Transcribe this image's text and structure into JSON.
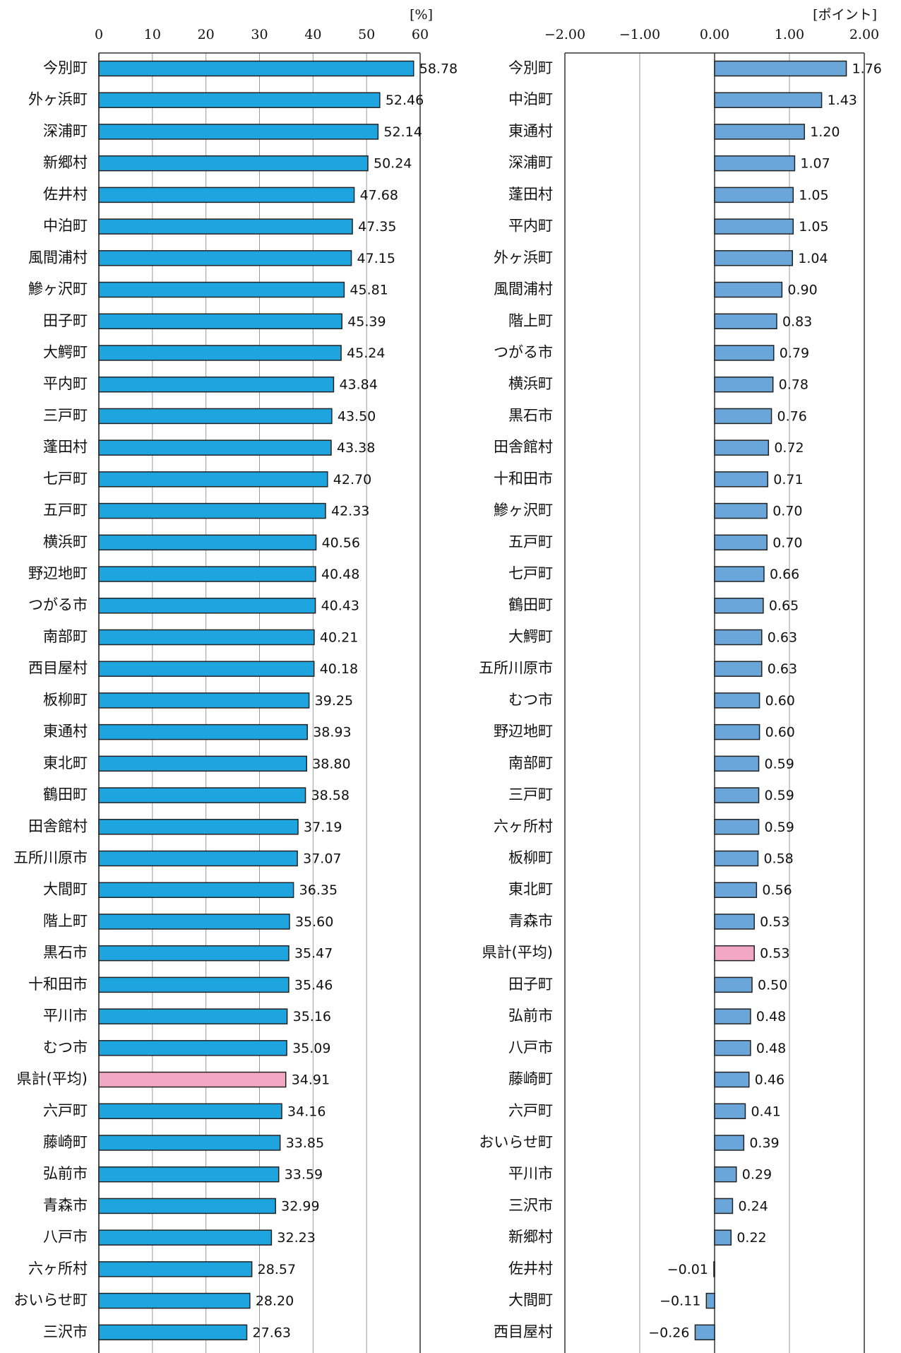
{
  "chart_data": [
    {
      "type": "barh",
      "unit": "[%]",
      "categories": [
        "今別町",
        "外ヶ浜町",
        "深浦町",
        "新郷村",
        "佐井村",
        "中泊町",
        "風間浦村",
        "鰺ヶ沢町",
        "田子町",
        "大鰐町",
        "平内町",
        "三戸町",
        "蓬田村",
        "七戸町",
        "五戸町",
        "横浜町",
        "野辺地町",
        "つがる市",
        "南部町",
        "西目屋村",
        "板柳町",
        "東通村",
        "東北町",
        "鶴田町",
        "田舎館村",
        "五所川原市",
        "大間町",
        "階上町",
        "黒石市",
        "十和田市",
        "平川市",
        "むつ市",
        "県計(平均)",
        "六戸町",
        "藤崎町",
        "弘前市",
        "青森市",
        "八戸市",
        "六ヶ所村",
        "おいらせ町",
        "三沢市"
      ],
      "values": [
        58.78,
        52.46,
        52.14,
        50.24,
        47.68,
        47.35,
        47.15,
        45.81,
        45.39,
        45.24,
        43.84,
        43.5,
        43.38,
        42.7,
        42.33,
        40.56,
        40.48,
        40.43,
        40.21,
        40.18,
        39.25,
        38.93,
        38.8,
        38.58,
        37.19,
        37.07,
        36.35,
        35.6,
        35.47,
        35.46,
        35.16,
        35.09,
        34.91,
        34.16,
        33.85,
        33.59,
        32.99,
        32.23,
        28.57,
        28.2,
        27.63
      ],
      "value_labels": [
        "58.78",
        "52.46",
        "52.14",
        "50.24",
        "47.68",
        "47.35",
        "47.15",
        "45.81",
        "45.39",
        "45.24",
        "43.84",
        "43.50",
        "43.38",
        "42.70",
        "42.33",
        "40.56",
        "40.48",
        "40.43",
        "40.21",
        "40.18",
        "39.25",
        "38.93",
        "38.80",
        "38.58",
        "37.19",
        "37.07",
        "36.35",
        "35.60",
        "35.47",
        "35.46",
        "35.16",
        "35.09",
        "34.91",
        "34.16",
        "33.85",
        "33.59",
        "32.99",
        "32.23",
        "28.57",
        "28.20",
        "27.63"
      ],
      "colors": [
        "#1ea5e0",
        "#1ea5e0",
        "#1ea5e0",
        "#1ea5e0",
        "#1ea5e0",
        "#1ea5e0",
        "#1ea5e0",
        "#1ea5e0",
        "#1ea5e0",
        "#1ea5e0",
        "#1ea5e0",
        "#1ea5e0",
        "#1ea5e0",
        "#1ea5e0",
        "#1ea5e0",
        "#1ea5e0",
        "#1ea5e0",
        "#1ea5e0",
        "#1ea5e0",
        "#1ea5e0",
        "#1ea5e0",
        "#1ea5e0",
        "#1ea5e0",
        "#1ea5e0",
        "#1ea5e0",
        "#1ea5e0",
        "#1ea5e0",
        "#1ea5e0",
        "#1ea5e0",
        "#1ea5e0",
        "#1ea5e0",
        "#1ea5e0",
        "#f2a7c3",
        "#1ea5e0",
        "#1ea5e0",
        "#1ea5e0",
        "#1ea5e0",
        "#1ea5e0",
        "#1ea5e0",
        "#1ea5e0",
        "#1ea5e0"
      ],
      "xlim": [
        0,
        60
      ],
      "xticks": [
        0,
        10,
        20,
        30,
        40,
        50,
        60
      ],
      "grid": true
    },
    {
      "type": "barh",
      "unit": "[ポイント]",
      "categories": [
        "今別町",
        "中泊町",
        "東通村",
        "深浦町",
        "蓬田村",
        "平内町",
        "外ヶ浜町",
        "風間浦村",
        "階上町",
        "つがる市",
        "横浜町",
        "黒石市",
        "田舎館村",
        "十和田市",
        "鰺ヶ沢町",
        "五戸町",
        "七戸町",
        "鶴田町",
        "大鰐町",
        "五所川原市",
        "むつ市",
        "野辺地町",
        "南部町",
        "三戸町",
        "六ヶ所村",
        "板柳町",
        "東北町",
        "青森市",
        "県計(平均)",
        "田子町",
        "弘前市",
        "八戸市",
        "藤崎町",
        "六戸町",
        "おいらせ町",
        "平川市",
        "三沢市",
        "新郷村",
        "佐井村",
        "大間町",
        "西目屋村"
      ],
      "values": [
        1.76,
        1.43,
        1.2,
        1.07,
        1.05,
        1.05,
        1.04,
        0.9,
        0.83,
        0.79,
        0.78,
        0.76,
        0.72,
        0.71,
        0.7,
        0.7,
        0.66,
        0.65,
        0.63,
        0.63,
        0.6,
        0.6,
        0.59,
        0.59,
        0.59,
        0.58,
        0.56,
        0.53,
        0.53,
        0.5,
        0.48,
        0.48,
        0.46,
        0.41,
        0.39,
        0.29,
        0.24,
        0.22,
        -0.01,
        -0.11,
        -0.26
      ],
      "value_labels": [
        "1.76",
        "1.43",
        "1.20",
        "1.07",
        "1.05",
        "1.05",
        "1.04",
        "0.90",
        "0.83",
        "0.79",
        "0.78",
        "0.76",
        "0.72",
        "0.71",
        "0.70",
        "0.70",
        "0.66",
        "0.65",
        "0.63",
        "0.63",
        "0.60",
        "0.60",
        "0.59",
        "0.59",
        "0.59",
        "0.58",
        "0.56",
        "0.53",
        "0.53",
        "0.50",
        "0.48",
        "0.48",
        "0.46",
        "0.41",
        "0.39",
        "0.29",
        "0.24",
        "0.22",
        "−0.01",
        "−0.11",
        "−0.26"
      ],
      "colors": [
        "#6aa6da",
        "#6aa6da",
        "#6aa6da",
        "#6aa6da",
        "#6aa6da",
        "#6aa6da",
        "#6aa6da",
        "#6aa6da",
        "#6aa6da",
        "#6aa6da",
        "#6aa6da",
        "#6aa6da",
        "#6aa6da",
        "#6aa6da",
        "#6aa6da",
        "#6aa6da",
        "#6aa6da",
        "#6aa6da",
        "#6aa6da",
        "#6aa6da",
        "#6aa6da",
        "#6aa6da",
        "#6aa6da",
        "#6aa6da",
        "#6aa6da",
        "#6aa6da",
        "#6aa6da",
        "#6aa6da",
        "#f2a7c3",
        "#6aa6da",
        "#6aa6da",
        "#6aa6da",
        "#6aa6da",
        "#6aa6da",
        "#6aa6da",
        "#6aa6da",
        "#6aa6da",
        "#6aa6da",
        "#6aa6da",
        "#6aa6da",
        "#6aa6da"
      ],
      "xlim": [
        -2,
        2
      ],
      "xticks": [
        {
          "value": -2,
          "label": "−2.00"
        },
        {
          "value": -1,
          "label": "−1.00"
        },
        {
          "value": 0,
          "label": "0.00"
        },
        {
          "value": 1,
          "label": "1.00"
        },
        {
          "value": 2,
          "label": "2.00"
        }
      ],
      "grid": true
    }
  ]
}
